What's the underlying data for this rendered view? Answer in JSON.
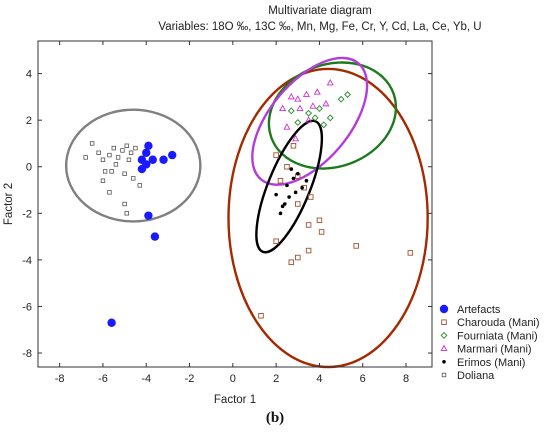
{
  "figure_label": "(b)",
  "chart_data": {
    "type": "scatter",
    "title": "Multivariate diagram",
    "subtitle": "Variables: 18O ‰, 13C ‰, Mn, Mg, Fe, Cr, Y, Cd, La, Ce, Yb, U",
    "xlabel": "Factor 1",
    "ylabel": "Factor 2",
    "xlim": [
      -9,
      9.2
    ],
    "ylim": [
      -8.6,
      5.4
    ],
    "xticks": [
      -8,
      -6,
      -4,
      -2,
      0,
      2,
      4,
      6,
      8
    ],
    "yticks": [
      -8,
      -6,
      -4,
      -2,
      0,
      2,
      4
    ],
    "grid": false,
    "legend_position": "right",
    "series": [
      {
        "name": "Artefacts",
        "marker": "filled-circle-large",
        "color": "#1a1aff",
        "points": [
          [
            -4.2,
            0.3
          ],
          [
            -4.0,
            0.6
          ],
          [
            -4.0,
            0.1
          ],
          [
            -3.9,
            0.9
          ],
          [
            -3.7,
            0.3
          ],
          [
            -4.2,
            -0.1
          ],
          [
            -3.2,
            0.3
          ],
          [
            -2.8,
            0.5
          ],
          [
            -3.9,
            -2.1
          ],
          [
            -3.6,
            -3.0
          ],
          [
            -5.6,
            -6.7
          ]
        ],
        "ellipse": {
          "cx": -4.6,
          "cy": 0.05,
          "rx": 3.1,
          "ry": 2.4,
          "angle": 0,
          "color": "#808080"
        }
      },
      {
        "name": "Charouda (Mani)",
        "marker": "open-square",
        "color": "#a0522d",
        "points": [
          [
            2.0,
            0.5
          ],
          [
            2.5,
            0.0
          ],
          [
            3.0,
            -0.4
          ],
          [
            3.3,
            -0.9
          ],
          [
            3.6,
            -1.3
          ],
          [
            3.0,
            -1.6
          ],
          [
            4.0,
            -2.3
          ],
          [
            3.5,
            -2.5
          ],
          [
            4.1,
            -2.8
          ],
          [
            2.0,
            -3.2
          ],
          [
            3.5,
            -3.6
          ],
          [
            3.0,
            -3.9
          ],
          [
            2.7,
            -4.1
          ],
          [
            5.7,
            -3.4
          ],
          [
            8.2,
            -3.7
          ],
          [
            1.3,
            -6.4
          ],
          [
            2.8,
            0.9
          ],
          [
            2.2,
            -0.6
          ]
        ],
        "ellipse": {
          "cx": 4.4,
          "cy": -2.2,
          "rx": 4.6,
          "ry": 6.4,
          "angle": 0,
          "color": "#a52a00"
        }
      },
      {
        "name": "Fourniata (Mani)",
        "marker": "open-diamond",
        "color": "#228b22",
        "points": [
          [
            3.0,
            1.9
          ],
          [
            3.5,
            2.3
          ],
          [
            4.0,
            2.5
          ],
          [
            4.5,
            2.1
          ],
          [
            5.0,
            2.9
          ],
          [
            5.3,
            3.1
          ],
          [
            2.7,
            2.4
          ],
          [
            4.2,
            1.8
          ],
          [
            3.8,
            2.1
          ]
        ],
        "ellipse": {
          "cx": 4.6,
          "cy": 2.2,
          "rx": 3.0,
          "ry": 2.2,
          "angle": -20,
          "color": "#1e7a1e"
        }
      },
      {
        "name": "Marmari (Mani)",
        "marker": "open-triangle",
        "color": "#cc33cc",
        "points": [
          [
            2.7,
            3.0
          ],
          [
            3.0,
            2.9
          ],
          [
            3.4,
            3.1
          ],
          [
            3.9,
            3.2
          ],
          [
            3.1,
            2.5
          ],
          [
            3.7,
            2.6
          ],
          [
            4.3,
            2.7
          ],
          [
            2.5,
            1.7
          ],
          [
            2.9,
            1.2
          ],
          [
            3.5,
            2.0
          ],
          [
            4.5,
            3.6
          ],
          [
            2.3,
            2.5
          ]
        ],
        "ellipse": {
          "cx": 3.55,
          "cy": 1.95,
          "rx": 3.5,
          "ry": 1.7,
          "angle": -50,
          "color": "#b43cdc"
        }
      },
      {
        "name": "Erimos (Mani)",
        "marker": "filled-dot",
        "color": "#000000",
        "points": [
          [
            2.5,
            -0.8
          ],
          [
            2.8,
            -0.5
          ],
          [
            3.0,
            -0.3
          ],
          [
            2.6,
            -1.3
          ],
          [
            2.9,
            -1.1
          ],
          [
            2.4,
            -1.6
          ],
          [
            2.2,
            -2.0
          ],
          [
            2.0,
            -1.2
          ],
          [
            3.2,
            -0.9
          ],
          [
            2.7,
            -0.1
          ],
          [
            3.4,
            -0.6
          ],
          [
            2.3,
            -1.7
          ]
        ],
        "ellipse": {
          "cx": 2.6,
          "cy": -0.85,
          "rx": 3.25,
          "ry": 0.9,
          "angle": -68,
          "color": "#000000"
        }
      },
      {
        "name": "Doliana",
        "marker": "small-open-square",
        "color": "#555555",
        "points": [
          [
            -6.5,
            1.0
          ],
          [
            -6.2,
            0.6
          ],
          [
            -6.0,
            0.3
          ],
          [
            -5.7,
            0.5
          ],
          [
            -5.5,
            0.8
          ],
          [
            -5.3,
            0.4
          ],
          [
            -5.1,
            0.7
          ],
          [
            -4.9,
            0.9
          ],
          [
            -4.7,
            0.6
          ],
          [
            -4.5,
            0.8
          ],
          [
            -6.8,
            0.4
          ],
          [
            -5.9,
            -0.2
          ],
          [
            -5.4,
            0.1
          ],
          [
            -5.0,
            -0.3
          ],
          [
            -4.6,
            -0.5
          ],
          [
            -4.3,
            -0.8
          ],
          [
            -5.7,
            -1.1
          ],
          [
            -5.0,
            -1.6
          ],
          [
            -4.9,
            -2.0
          ],
          [
            -6.0,
            -0.6
          ],
          [
            -5.6,
            -0.2
          ],
          [
            -4.8,
            0.3
          ]
        ]
      }
    ]
  }
}
